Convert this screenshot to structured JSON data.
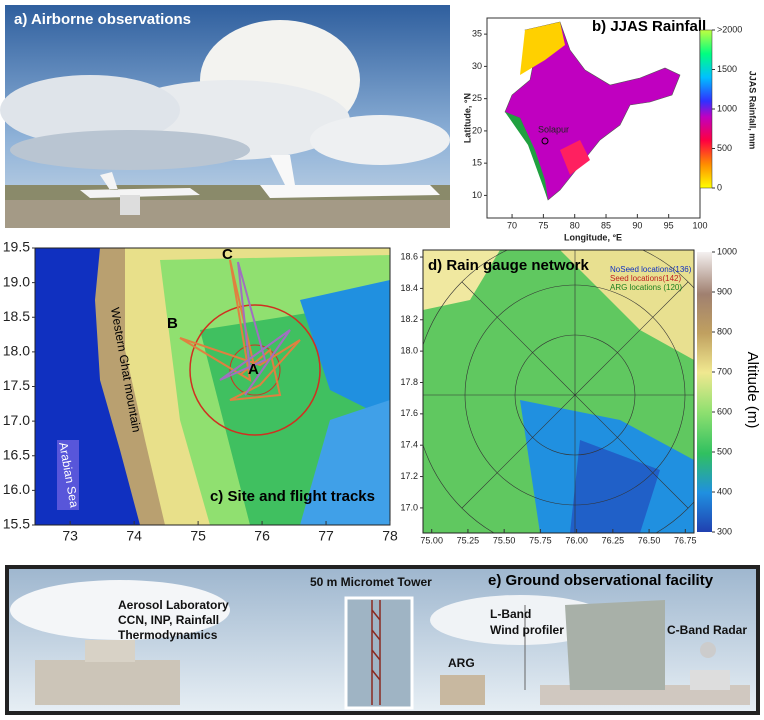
{
  "panels": {
    "a": {
      "label": "a) Airborne observations"
    },
    "b": {
      "label": "b) JJAS Rainfall",
      "x_label": "Longitude, °E",
      "y_label": "Latitude, °N",
      "colorbar_label": "JJAS Rainfall, mm",
      "site": "Solapur",
      "xlim": [
        66,
        100
      ],
      "xticks": [
        70,
        75,
        80,
        85,
        90,
        95,
        100
      ],
      "ylim": [
        6.5,
        37.5
      ],
      "yticks": [
        10,
        15,
        20,
        25,
        30,
        35
      ],
      "colorbar_lim": [
        0,
        2000
      ],
      "colorbar_ticks": [
        0,
        500,
        1000,
        1500,
        {
          "value": 2000,
          "label": ">2000"
        }
      ]
    },
    "c": {
      "label": "c) Site and flight tracks",
      "points": [
        "A",
        "B",
        "C"
      ],
      "mountain": "Western Ghat mountain",
      "sea": "Arabian Sea",
      "xlim": [
        72.45,
        78
      ],
      "xticks": [
        73,
        74,
        75,
        76,
        77,
        78
      ],
      "ylim": [
        15.5,
        19.5
      ],
      "yticks": [
        15.5,
        {
          "value": 16,
          "label": "16.0"
        },
        16.5,
        {
          "value": 17,
          "label": "17.0"
        },
        17.5,
        {
          "value": 18,
          "label": "18.0"
        },
        18.5,
        {
          "value": 19,
          "label": "19.0"
        },
        19.5
      ]
    },
    "d": {
      "label": "d) Rain gauge network",
      "legend": [
        "NoSeed locations(136)",
        "Seed locations(142)",
        "ARG locations (120)"
      ],
      "colorbar_label": "Altitude (m)",
      "xlim": [
        74.94,
        76.81
      ],
      "xticks": [
        {
          "value": 75,
          "label": "75.00"
        },
        75.25,
        {
          "value": 75.5,
          "label": "75.50"
        },
        75.75,
        {
          "value": 76,
          "label": "76.00"
        },
        76.25,
        {
          "value": 76.5,
          "label": "76.50"
        },
        76.75
      ],
      "ylim": [
        16.84,
        18.645
      ],
      "yticks": [
        {
          "value": 17,
          "label": "17.0"
        },
        17.2,
        17.4,
        17.6,
        17.8,
        {
          "value": 18,
          "label": "18.0"
        },
        18.2,
        18.4,
        18.6
      ],
      "colorbar_lim": [
        300,
        1000
      ],
      "colorbar_ticks": [
        300,
        400,
        500,
        600,
        700,
        800,
        900,
        1000
      ]
    },
    "e": {
      "label": "e) Ground observational facility",
      "tower": "50 m Micromet Tower",
      "lab": [
        "Aerosol Laboratory",
        "CCN, INP, Rainfall",
        "Thermodynamics"
      ],
      "profiler": [
        "L-Band",
        "Wind profiler"
      ],
      "arg": "ARG",
      "radar": "C-Band Radar"
    }
  }
}
